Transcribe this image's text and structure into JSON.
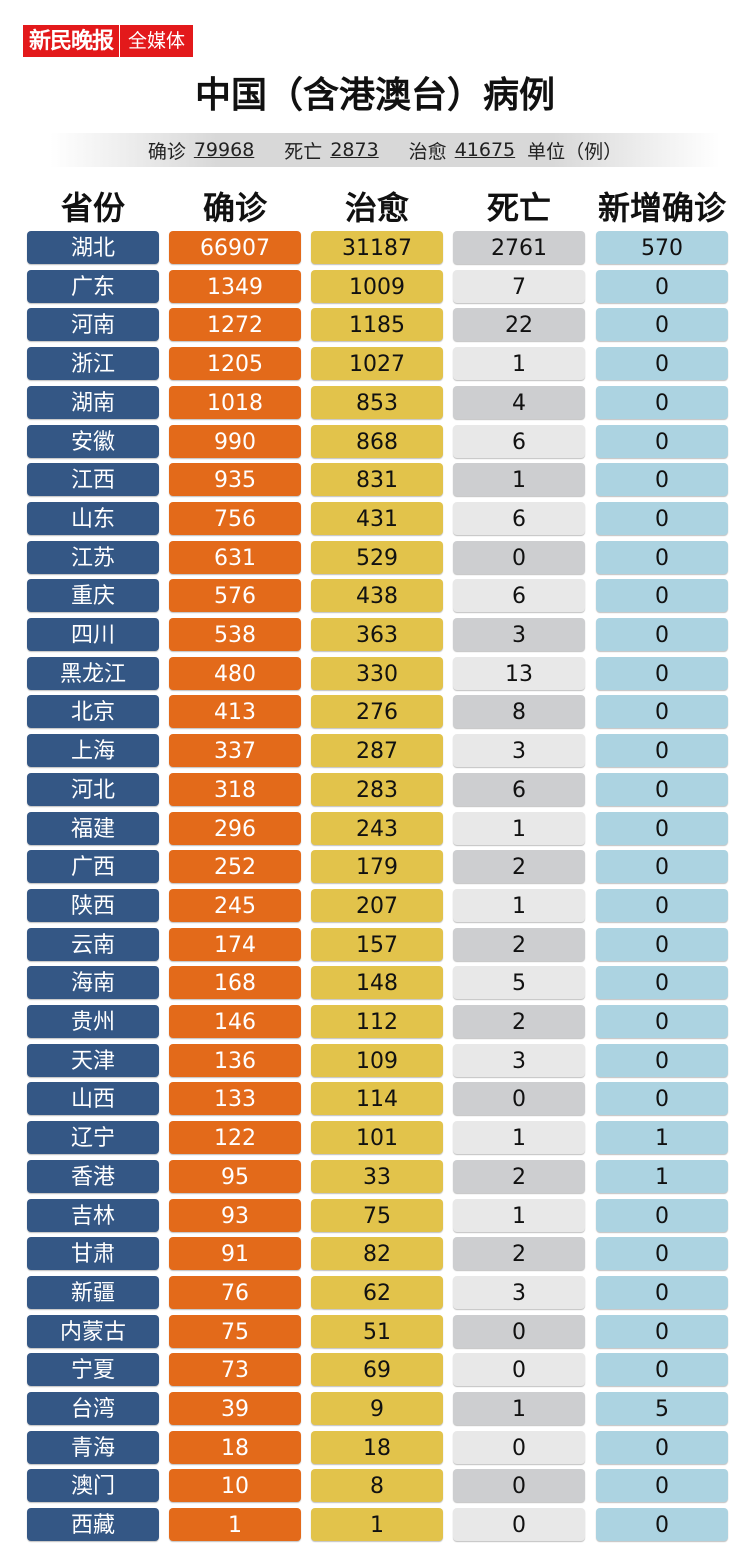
{
  "brand": {
    "name": "新民晚报",
    "sub": "全媒体",
    "color": "#e3191b"
  },
  "title": "中国（含港澳台）病例",
  "summary": {
    "confirmed_label": "确诊",
    "confirmed": "79968",
    "death_label": "死亡",
    "death": "2873",
    "cured_label": "治愈",
    "cured": "41675",
    "unit": "单位（例）"
  },
  "chart_data": {
    "type": "table",
    "title": "中国（含港澳台）病例",
    "columns": [
      "省份",
      "确诊",
      "治愈",
      "死亡",
      "新增确诊"
    ],
    "colors": [
      "#345785",
      "#e36a1a",
      "#e2c34b",
      "#cdced0",
      "#acd3e1"
    ],
    "rows": [
      [
        "湖北",
        "66907",
        "31187",
        "2761",
        "570"
      ],
      [
        "广东",
        "1349",
        "1009",
        "7",
        "0"
      ],
      [
        "河南",
        "1272",
        "1185",
        "22",
        "0"
      ],
      [
        "浙江",
        "1205",
        "1027",
        "1",
        "0"
      ],
      [
        "湖南",
        "1018",
        "853",
        "4",
        "0"
      ],
      [
        "安徽",
        "990",
        "868",
        "6",
        "0"
      ],
      [
        "江西",
        "935",
        "831",
        "1",
        "0"
      ],
      [
        "山东",
        "756",
        "431",
        "6",
        "0"
      ],
      [
        "江苏",
        "631",
        "529",
        "0",
        "0"
      ],
      [
        "重庆",
        "576",
        "438",
        "6",
        "0"
      ],
      [
        "四川",
        "538",
        "363",
        "3",
        "0"
      ],
      [
        "黑龙江",
        "480",
        "330",
        "13",
        "0"
      ],
      [
        "北京",
        "413",
        "276",
        "8",
        "0"
      ],
      [
        "上海",
        "337",
        "287",
        "3",
        "0"
      ],
      [
        "河北",
        "318",
        "283",
        "6",
        "0"
      ],
      [
        "福建",
        "296",
        "243",
        "1",
        "0"
      ],
      [
        "广西",
        "252",
        "179",
        "2",
        "0"
      ],
      [
        "陕西",
        "245",
        "207",
        "1",
        "0"
      ],
      [
        "云南",
        "174",
        "157",
        "2",
        "0"
      ],
      [
        "海南",
        "168",
        "148",
        "5",
        "0"
      ],
      [
        "贵州",
        "146",
        "112",
        "2",
        "0"
      ],
      [
        "天津",
        "136",
        "109",
        "3",
        "0"
      ],
      [
        "山西",
        "133",
        "114",
        "0",
        "0"
      ],
      [
        "辽宁",
        "122",
        "101",
        "1",
        "1"
      ],
      [
        "香港",
        "95",
        "33",
        "2",
        "1"
      ],
      [
        "吉林",
        "93",
        "75",
        "1",
        "0"
      ],
      [
        "甘肃",
        "91",
        "82",
        "2",
        "0"
      ],
      [
        "新疆",
        "76",
        "62",
        "3",
        "0"
      ],
      [
        "内蒙古",
        "75",
        "51",
        "0",
        "0"
      ],
      [
        "宁夏",
        "73",
        "69",
        "0",
        "0"
      ],
      [
        "台湾",
        "39",
        "9",
        "1",
        "5"
      ],
      [
        "青海",
        "18",
        "18",
        "0",
        "0"
      ],
      [
        "澳门",
        "10",
        "8",
        "0",
        "0"
      ],
      [
        "西藏",
        "1",
        "1",
        "0",
        "0"
      ]
    ]
  }
}
